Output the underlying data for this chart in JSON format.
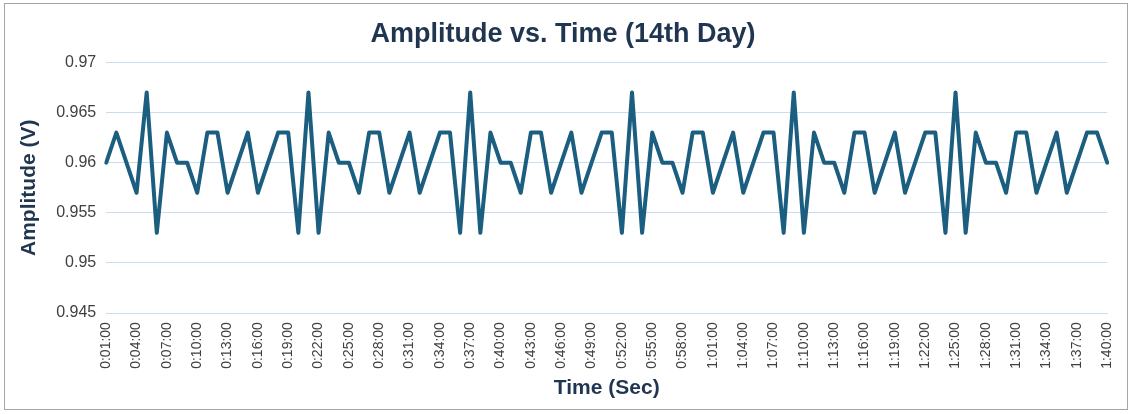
{
  "chart_data": {
    "type": "line",
    "title": "Amplitude vs. Time (14th Day)",
    "xlabel": "Time (Sec)",
    "ylabel": "Amplitude (V)",
    "categories": [
      "0:01:00",
      null,
      null,
      "0:04:00",
      null,
      null,
      "0:07:00",
      null,
      null,
      "0:10:00",
      null,
      null,
      "0:13:00",
      null,
      null,
      "0:16:00",
      null,
      null,
      "0:19:00",
      null,
      null,
      "0:22:00",
      null,
      null,
      "0:25:00",
      null,
      null,
      "0:28:00",
      null,
      null,
      "0:31:00",
      null,
      null,
      "0:34:00",
      null,
      null,
      "0:37:00",
      null,
      null,
      "0:40:00",
      null,
      null,
      "0:43:00",
      null,
      null,
      "0:46:00",
      null,
      null,
      "0:49:00",
      null,
      null,
      "0:52:00",
      null,
      null,
      "0:55:00",
      null,
      null,
      "0:58:00",
      null,
      null,
      "1:01:00",
      null,
      null,
      "1:04:00",
      null,
      null,
      "1:07:00",
      null,
      null,
      "1:10:00",
      null,
      null,
      "1:13:00",
      null,
      null,
      "1:16:00",
      null,
      null,
      "1:19:00",
      null,
      null,
      "1:22:00",
      null,
      null,
      "1:25:00",
      null,
      null,
      "1:28:00",
      null,
      null,
      "1:31:00",
      null,
      null,
      "1:34:00",
      null,
      null,
      "1:37:00",
      null,
      null,
      "1:40:00"
    ],
    "series": [
      {
        "color": "#1b5e80",
        "values": [
          0.96,
          0.963,
          0.96,
          0.957,
          0.967,
          0.953,
          0.963,
          0.96,
          0.96,
          0.957,
          0.963,
          0.963,
          0.957,
          0.96,
          0.963,
          0.957,
          0.96,
          0.963,
          0.963,
          0.953,
          0.967,
          0.953,
          0.963,
          0.96,
          0.96,
          0.957,
          0.963,
          0.963,
          0.957,
          0.96,
          0.963,
          0.957,
          0.96,
          0.963,
          0.963,
          0.953,
          0.967,
          0.953,
          0.963,
          0.96,
          0.96,
          0.957,
          0.963,
          0.963,
          0.957,
          0.96,
          0.963,
          0.957,
          0.96,
          0.963,
          0.963,
          0.953,
          0.967,
          0.953,
          0.963,
          0.96,
          0.96,
          0.957,
          0.963,
          0.963,
          0.957,
          0.96,
          0.963,
          0.957,
          0.96,
          0.963,
          0.963,
          0.953,
          0.967,
          0.953,
          0.963,
          0.96,
          0.96,
          0.957,
          0.963,
          0.963,
          0.957,
          0.96,
          0.963,
          0.957,
          0.96,
          0.963,
          0.963,
          0.953,
          0.967,
          0.953,
          0.963,
          0.96,
          0.96,
          0.957,
          0.963,
          0.963,
          0.957,
          0.96,
          0.963,
          0.957,
          0.96,
          0.963,
          0.963,
          0.96
        ]
      }
    ],
    "ylim": [
      0.945,
      0.97
    ],
    "yticks": [
      0.945,
      0.95,
      0.955,
      0.96,
      0.965,
      0.97
    ],
    "grid": "y",
    "legend": false,
    "marker": "none",
    "line_style": "solid"
  }
}
